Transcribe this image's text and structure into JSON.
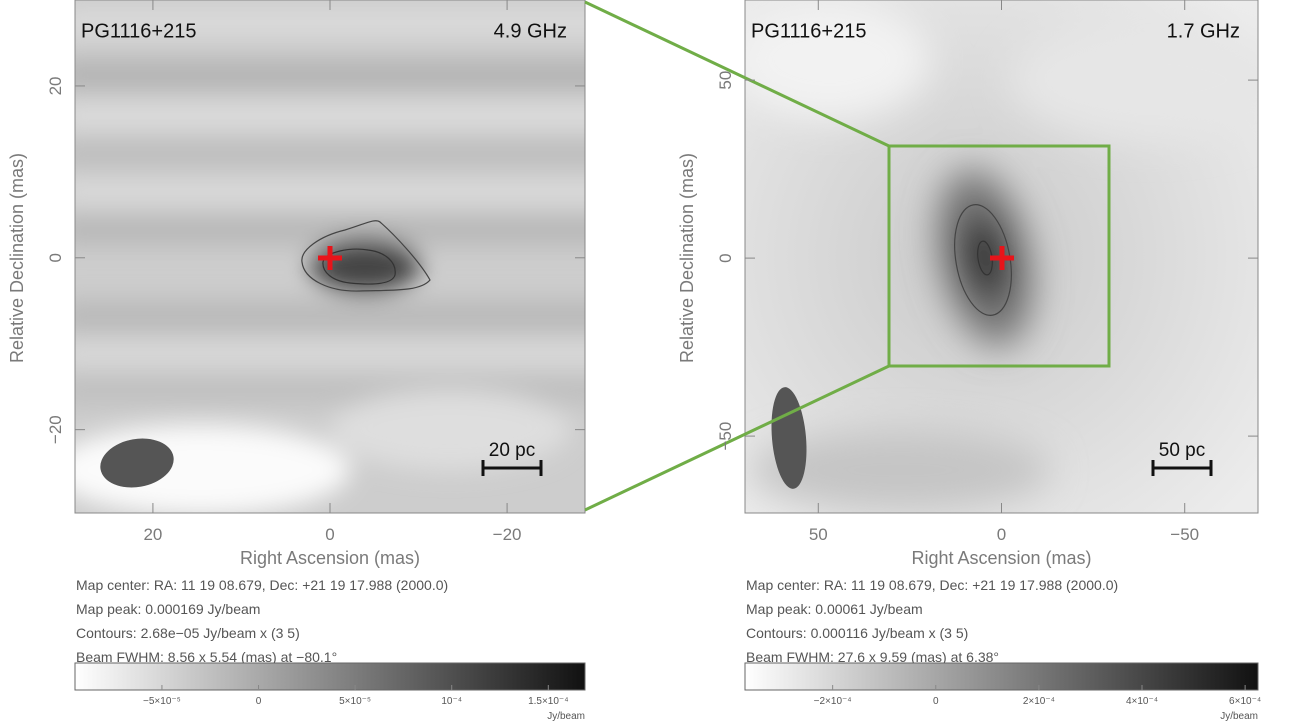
{
  "chart_data": [
    {
      "type": "image",
      "title": "PG1116+215",
      "frequency": "4.9 GHz",
      "xlabel": "Right Ascension  (mas)",
      "ylabel": "Relative Declination  (mas)",
      "xlim": [
        28.8,
        -28.8
      ],
      "ylim": [
        -29.7,
        30
      ],
      "xticks": [
        20,
        0,
        {
          "value": -20,
          "label": "−20"
        }
      ],
      "yticks": [
        {
          "value": -20,
          "label": "−20"
        },
        0,
        20
      ],
      "scale_bar": "20 pc",
      "info": [
        "Map center:  RA: 11 19 08.679,  Dec: +21 19 17.988 (2000.0)",
        "Map peak: 0.000169 Jy/beam",
        "Contours: 2.68e−05 Jy/beam x (3 5)",
        "Beam FWHM: 8.56 x 5.54 (mas) at −80.1°"
      ],
      "colorbar": {
        "lim": [
          -9.5e-05,
          0.000169
        ],
        "label": "Jy/beam",
        "ticks": [
          {
            "value": -5e-05,
            "label": "−5×10⁻⁵"
          },
          0,
          {
            "value": 5e-05,
            "label": "5×10⁻⁵"
          },
          {
            "value": 0.0001,
            "label": "10⁻⁴"
          },
          {
            "value": 0.00015,
            "label": "1.5×10⁻⁴"
          }
        ]
      }
    },
    {
      "type": "image",
      "title": "PG1116+215",
      "frequency": "1.7 GHz",
      "xlabel": "Right Ascension  (mas)",
      "ylabel": "Relative Declination  (mas)",
      "xlim": [
        70,
        -70
      ],
      "ylim": [
        -71.6,
        72.5
      ],
      "xticks": [
        50,
        0,
        {
          "value": -50,
          "label": "−50"
        }
      ],
      "yticks": [
        {
          "value": -50,
          "label": "−50"
        },
        0,
        50
      ],
      "scale_bar": "50 pc",
      "info": [
        "Map center:  RA: 11 19 08.679,  Dec: +21 19 17.988 (2000.0)",
        "Map peak: 0.00061 Jy/beam",
        "Contours: 0.000116 Jy/beam x (3 5)",
        "Beam FWHM: 27.6 x 9.59 (mas) at 6.38°"
      ],
      "colorbar": {
        "lim": [
          -0.00037,
          0.000625
        ],
        "label": "Jy/beam",
        "ticks": [
          {
            "value": -0.0002,
            "label": "−2×10⁻⁴"
          },
          0,
          {
            "value": 0.0002,
            "label": "2×10⁻⁴"
          },
          {
            "value": 0.0004,
            "label": "4×10⁻⁴"
          },
          {
            "value": 0.0006,
            "label": "6×10⁻⁴"
          }
        ]
      }
    }
  ]
}
